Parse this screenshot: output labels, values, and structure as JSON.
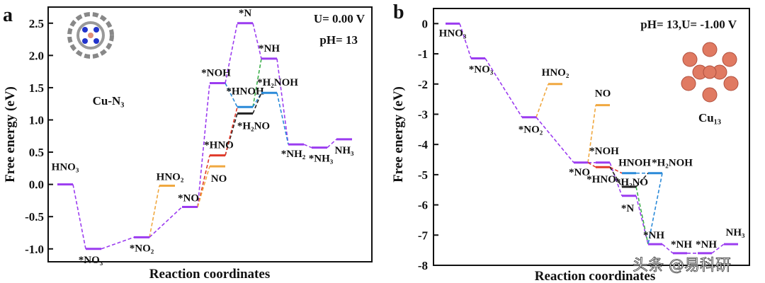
{
  "colors": {
    "main": "#9b3cf0",
    "hno2_no": "#f0a840",
    "hno": "#e03a2a",
    "hnoh": "#2a8ad8",
    "h2no": "#222222",
    "green": "#3cb04a"
  },
  "watermark": "头条 @易科研",
  "chart_data": [
    {
      "type": "line",
      "panel_label": "a",
      "catalyst": "Cu-N₃",
      "conditions": [
        "U= 0.00 V",
        "pH= 13"
      ],
      "xlabel": "Reaction coordinates",
      "ylabel": "Free energy (eV)",
      "ylim": [
        -1.2,
        2.75
      ],
      "yticks": [
        "2.5",
        "2.0",
        "1.5",
        "1.0",
        "0.5",
        "0.0",
        "-0.5",
        "-1.0"
      ],
      "ytick_values": [
        2.5,
        2.0,
        1.5,
        1.0,
        0.5,
        0.0,
        -0.5,
        -1.0
      ],
      "levels": [
        {
          "id": "HNO3",
          "label": "HNO₃",
          "step": 0,
          "energy": 0.0,
          "color": "main"
        },
        {
          "id": "NO3",
          "label": "*NO₃",
          "step": 1,
          "energy": -1.0,
          "color": "main"
        },
        {
          "id": "NO2",
          "label": "*NO₂",
          "step": 2,
          "energy": -0.82,
          "color": "main"
        },
        {
          "id": "HNO2",
          "label": "HNO₂",
          "step": 3,
          "energy": -0.02,
          "color": "hno2_no"
        },
        {
          "id": "NO_ads",
          "label": "*NO",
          "step": 4,
          "energy": -0.35,
          "color": "main"
        },
        {
          "id": "NOH",
          "label": "*NOH",
          "step": 5,
          "energy": 1.57,
          "color": "main"
        },
        {
          "id": "HNO",
          "label": "*HNO",
          "step": 5,
          "energy": 0.45,
          "color": "hno"
        },
        {
          "id": "NO_g",
          "label": "NO",
          "step": 5,
          "energy": 0.28,
          "color": "hno2_no"
        },
        {
          "id": "N",
          "label": "*N",
          "step": 6,
          "energy": 2.5,
          "color": "main"
        },
        {
          "id": "HNOH",
          "label": "*HNOH",
          "step": 6,
          "energy": 1.2,
          "color": "hnoh"
        },
        {
          "id": "H2NO",
          "label": "*H₂NO",
          "step": 6,
          "energy": 1.1,
          "color": "h2no"
        },
        {
          "id": "NH",
          "label": "*NH",
          "step": 7,
          "energy": 1.95,
          "color": "main"
        },
        {
          "id": "H2NOH",
          "label": "*H₂NOH",
          "step": 7,
          "energy": 1.42,
          "color": "hnoh"
        },
        {
          "id": "NH2",
          "label": "*NH₂",
          "step": 8,
          "energy": 0.62,
          "color": "main"
        },
        {
          "id": "NH3_ads",
          "label": "*NH₃",
          "step": 9,
          "energy": 0.57,
          "color": "main"
        },
        {
          "id": "NH3",
          "label": "NH₃",
          "step": 10,
          "energy": 0.7,
          "color": "main"
        }
      ],
      "connections": [
        [
          "HNO3",
          "NO3",
          "main"
        ],
        [
          "NO3",
          "NO2",
          "main"
        ],
        [
          "NO2",
          "HNO2",
          "hno2_no"
        ],
        [
          "NO2",
          "NO_ads",
          "main"
        ],
        [
          "NO_ads",
          "NOH",
          "main"
        ],
        [
          "NO_ads",
          "HNO",
          "hno"
        ],
        [
          "NO_ads",
          "NO_g",
          "hno2_no"
        ],
        [
          "NOH",
          "N",
          "main"
        ],
        [
          "NOH",
          "HNOH",
          "hnoh"
        ],
        [
          "HNO",
          "H2NO",
          "h2no"
        ],
        [
          "HNO",
          "HNOH",
          "hno"
        ],
        [
          "N",
          "NH",
          "main"
        ],
        [
          "HNOH",
          "NH",
          "green"
        ],
        [
          "HNOH",
          "H2NOH",
          "hnoh"
        ],
        [
          "H2NO",
          "H2NOH",
          "h2no"
        ],
        [
          "NH",
          "NH2",
          "main"
        ],
        [
          "H2NOH",
          "NH2",
          "hnoh"
        ],
        [
          "NH2",
          "NH3_ads",
          "main"
        ],
        [
          "NH3_ads",
          "NH3",
          "main"
        ]
      ]
    },
    {
      "type": "line",
      "panel_label": "b",
      "catalyst": "Cu₁₃",
      "conditions": [
        "pH= 13,U= -1.00 V"
      ],
      "xlabel": "Reaction coordinates",
      "ylabel": "Free energy (eV)",
      "ylim": [
        -8,
        0.5
      ],
      "yticks": [
        "0",
        "-1",
        "-2",
        "-3",
        "-4",
        "-5",
        "-6",
        "-7",
        "-8"
      ],
      "ytick_values": [
        0,
        -1,
        -2,
        -3,
        -4,
        -5,
        -6,
        -7,
        -8
      ],
      "levels": [
        {
          "id": "HNO3",
          "label": "HNO₃",
          "step": 0,
          "energy": 0.0,
          "color": "main"
        },
        {
          "id": "NO3",
          "label": "*NO₃",
          "step": 1,
          "energy": -1.15,
          "color": "main"
        },
        {
          "id": "NO2",
          "label": "*NO₂",
          "step": 2,
          "energy": -3.1,
          "color": "main"
        },
        {
          "id": "HNO2",
          "label": "HNO₂",
          "step": 3,
          "energy": -2.0,
          "color": "hno2_no"
        },
        {
          "id": "NO_ads",
          "label": "*NO",
          "step": 4,
          "energy": -4.6,
          "color": "main"
        },
        {
          "id": "NO_g",
          "label": "NO",
          "step": 5,
          "energy": -2.7,
          "color": "hno2_no"
        },
        {
          "id": "NOH",
          "label": "*NOH",
          "step": 5,
          "energy": -4.6,
          "color": "main"
        },
        {
          "id": "HNO",
          "label": "*HNO",
          "step": 5,
          "energy": -4.75,
          "color": "hno"
        },
        {
          "id": "HNOH",
          "label": "HNOH",
          "step": 6,
          "energy": -4.95,
          "color": "hnoh"
        },
        {
          "id": "H2NO",
          "label": "*H₂NO",
          "step": 6,
          "energy": -5.4,
          "color": "h2no"
        },
        {
          "id": "N",
          "label": "*N",
          "step": 6,
          "energy": -5.7,
          "color": "main"
        },
        {
          "id": "H2NOH",
          "label": "*H₂NOH",
          "step": 7,
          "energy": -4.95,
          "color": "hnoh"
        },
        {
          "id": "NH",
          "label": "*NH",
          "step": 7,
          "energy": -7.3,
          "color": "main"
        },
        {
          "id": "NH2",
          "label": "*NH",
          "step": 8,
          "energy": -7.6,
          "color": "main"
        },
        {
          "id": "NH3_ads",
          "label": "*NH",
          "step": 9,
          "energy": -7.6,
          "color": "main"
        },
        {
          "id": "NH3",
          "label": "NH₃",
          "step": 10,
          "energy": -7.3,
          "color": "main"
        }
      ],
      "connections": [
        [
          "HNO3",
          "NO3",
          "main"
        ],
        [
          "NO3",
          "NO2",
          "main"
        ],
        [
          "NO2",
          "HNO2",
          "hno2_no"
        ],
        [
          "NO2",
          "NO_ads",
          "main"
        ],
        [
          "NO_ads",
          "NO_g",
          "hno2_no"
        ],
        [
          "NO_ads",
          "NOH",
          "main"
        ],
        [
          "NO_ads",
          "HNO",
          "hno"
        ],
        [
          "NOH",
          "N",
          "main"
        ],
        [
          "HNO",
          "HNOH",
          "hno"
        ],
        [
          "HNO",
          "H2NO",
          "h2no"
        ],
        [
          "HNOH",
          "H2NOH",
          "hnoh"
        ],
        [
          "H2NO",
          "H2NOH",
          "h2no"
        ],
        [
          "N",
          "NH",
          "main"
        ],
        [
          "H2NO",
          "NH",
          "green"
        ],
        [
          "H2NOH",
          "NH",
          "hnoh"
        ],
        [
          "NH",
          "NH2",
          "main"
        ],
        [
          "NH2",
          "NH3_ads",
          "main"
        ],
        [
          "NH3_ads",
          "NH3",
          "main"
        ]
      ]
    }
  ]
}
